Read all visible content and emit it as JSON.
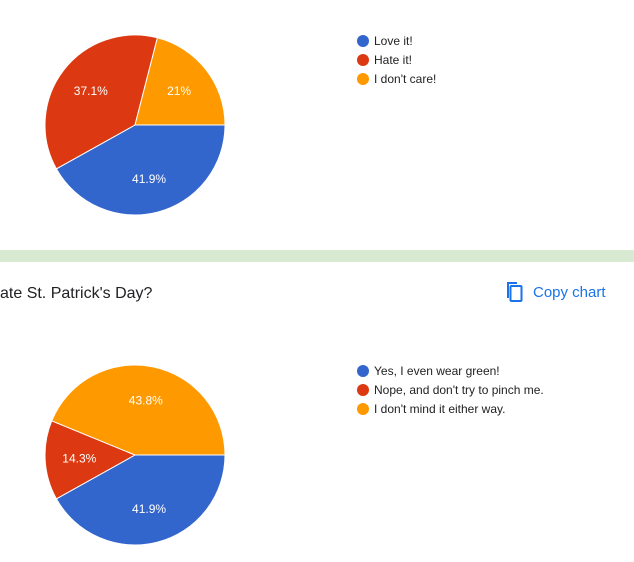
{
  "colors": {
    "blue": "#3366cc",
    "red": "#dc3912",
    "orange": "#ff9900",
    "accent": "#1a73e8",
    "divider": "#d9ead3"
  },
  "question2": {
    "title": "ate St. Patrick's Day?",
    "copy_label": "Copy chart",
    "copy_icon": "copy-icon"
  },
  "chart_data": [
    {
      "type": "pie",
      "title": "",
      "legend_position": "right",
      "slices": [
        {
          "label": "Love it!",
          "value": 41.9,
          "display": "41.9%",
          "color": "#3366cc"
        },
        {
          "label": "Hate it!",
          "value": 37.1,
          "display": "37.1%",
          "color": "#dc3912"
        },
        {
          "label": "I don't care!",
          "value": 21.0,
          "display": "21%",
          "color": "#ff9900"
        }
      ]
    },
    {
      "type": "pie",
      "title": "",
      "legend_position": "right",
      "slices": [
        {
          "label": "Yes, I even wear green!",
          "value": 41.9,
          "display": "41.9%",
          "color": "#3366cc"
        },
        {
          "label": "Nope, and don't try to pinch me.",
          "value": 14.3,
          "display": "14.3%",
          "color": "#dc3912"
        },
        {
          "label": "I don't mind it either way.",
          "value": 43.8,
          "display": "43.8%",
          "color": "#ff9900"
        }
      ]
    }
  ]
}
